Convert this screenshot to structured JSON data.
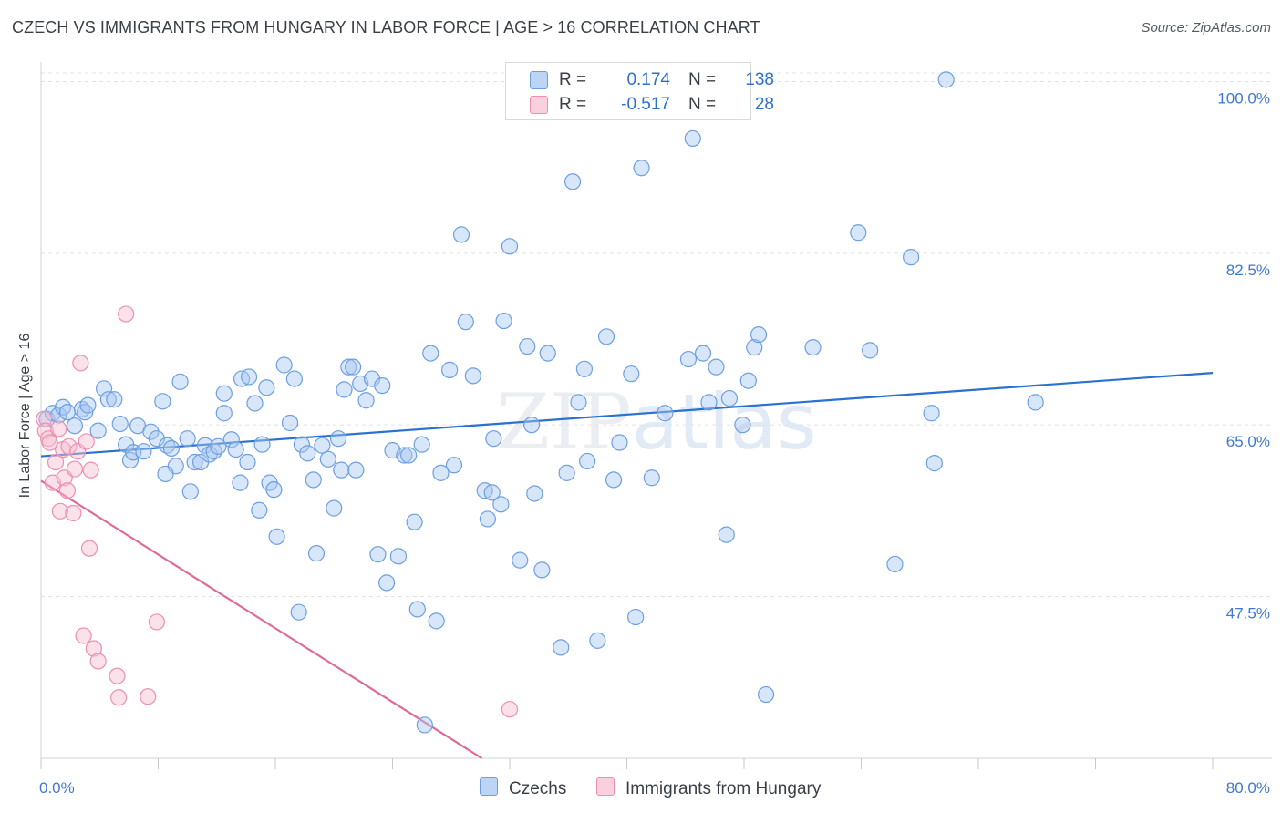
{
  "title": "CZECH VS IMMIGRANTS FROM HUNGARY IN LABOR FORCE | AGE > 16 CORRELATION CHART",
  "source": "Source: ZipAtlas.com",
  "watermark": "ZIPatlas",
  "legend": {
    "rows": [
      {
        "r_label": "R =",
        "r_value": "0.174",
        "n_label": "N =",
        "n_value": "138"
      },
      {
        "r_label": "R =",
        "r_value": "-0.517",
        "n_label": "N =",
        "n_value": "28"
      }
    ],
    "bottom": [
      "Czechs",
      "Immigrants from Hungary"
    ]
  },
  "colors": {
    "czechs_fill": "#a9c8f2",
    "czechs_stroke": "#6d9fe0",
    "czechs_line": "#2a72d0",
    "hungary_fill": "#f7bcd0",
    "hungary_stroke": "#ec8fb0",
    "hungary_line": "#e0689a",
    "tick_label": "#3f78d0",
    "grid": "#dfe3e8"
  },
  "chart_data": {
    "type": "scatter",
    "title": "CZECH VS IMMIGRANTS FROM HUNGARY IN LABOR FORCE | AGE > 16 CORRELATION CHART",
    "xlabel": "",
    "ylabel": "In Labor Force | Age > 16",
    "xlim": [
      0,
      80
    ],
    "ylim": [
      31,
      102
    ],
    "x_tick_labels": [
      "0.0%",
      "80.0%"
    ],
    "y_ticks": [
      47.5,
      65.0,
      82.5,
      100.0
    ],
    "y_tick_labels": [
      "47.5%",
      "65.0%",
      "82.5%",
      "100.0%"
    ],
    "grid": true,
    "series": [
      {
        "name": "Czechs",
        "points": [
          [
            0.4,
            65.6
          ],
          [
            0.8,
            66.2
          ],
          [
            1.2,
            66.0
          ],
          [
            1.5,
            66.8
          ],
          [
            1.8,
            66.3
          ],
          [
            2.3,
            64.9
          ],
          [
            2.8,
            66.6
          ],
          [
            3.0,
            66.3
          ],
          [
            3.2,
            67.0
          ],
          [
            3.9,
            64.4
          ],
          [
            4.3,
            68.7
          ],
          [
            4.6,
            67.6
          ],
          [
            5.0,
            67.6
          ],
          [
            5.4,
            65.1
          ],
          [
            5.8,
            63.0
          ],
          [
            6.1,
            61.4
          ],
          [
            6.3,
            62.2
          ],
          [
            6.6,
            64.9
          ],
          [
            7.0,
            62.3
          ],
          [
            7.5,
            64.3
          ],
          [
            7.9,
            63.6
          ],
          [
            8.3,
            67.4
          ],
          [
            8.6,
            62.9
          ],
          [
            8.9,
            62.6
          ],
          [
            9.2,
            60.8
          ],
          [
            9.5,
            69.4
          ],
          [
            10.0,
            63.6
          ],
          [
            10.2,
            58.2
          ],
          [
            10.5,
            61.2
          ],
          [
            10.9,
            61.2
          ],
          [
            11.2,
            62.9
          ],
          [
            11.5,
            62.0
          ],
          [
            11.8,
            62.3
          ],
          [
            12.1,
            62.8
          ],
          [
            12.5,
            66.2
          ],
          [
            12.5,
            68.2
          ],
          [
            13.0,
            63.5
          ],
          [
            13.3,
            62.5
          ],
          [
            13.7,
            69.7
          ],
          [
            14.1,
            61.2
          ],
          [
            14.2,
            69.9
          ],
          [
            14.6,
            67.2
          ],
          [
            14.9,
            56.3
          ],
          [
            15.1,
            63.0
          ],
          [
            15.4,
            68.8
          ],
          [
            15.6,
            59.1
          ],
          [
            15.9,
            58.4
          ],
          [
            16.1,
            53.6
          ],
          [
            16.6,
            71.1
          ],
          [
            17.0,
            65.2
          ],
          [
            17.3,
            69.7
          ],
          [
            17.6,
            45.9
          ],
          [
            17.8,
            63.0
          ],
          [
            18.2,
            62.1
          ],
          [
            18.6,
            59.4
          ],
          [
            18.8,
            51.9
          ],
          [
            19.2,
            62.9
          ],
          [
            19.6,
            61.5
          ],
          [
            20.0,
            56.5
          ],
          [
            20.3,
            63.6
          ],
          [
            20.5,
            60.4
          ],
          [
            20.7,
            68.6
          ],
          [
            21.0,
            70.9
          ],
          [
            21.3,
            70.9
          ],
          [
            21.8,
            69.2
          ],
          [
            22.2,
            67.5
          ],
          [
            22.6,
            69.7
          ],
          [
            23.0,
            51.8
          ],
          [
            23.3,
            69.0
          ],
          [
            23.6,
            48.9
          ],
          [
            24.0,
            62.4
          ],
          [
            24.4,
            51.6
          ],
          [
            24.8,
            61.9
          ],
          [
            25.1,
            61.9
          ],
          [
            25.5,
            55.1
          ],
          [
            25.7,
            46.2
          ],
          [
            26.0,
            63.0
          ],
          [
            26.6,
            72.3
          ],
          [
            27.0,
            45.0
          ],
          [
            27.3,
            60.1
          ],
          [
            27.9,
            70.6
          ],
          [
            28.2,
            60.9
          ],
          [
            28.7,
            84.4
          ],
          [
            29.0,
            75.5
          ],
          [
            29.5,
            70.0
          ],
          [
            30.3,
            58.3
          ],
          [
            30.5,
            55.4
          ],
          [
            30.9,
            63.6
          ],
          [
            31.4,
            56.9
          ],
          [
            31.6,
            75.6
          ],
          [
            32.0,
            83.2
          ],
          [
            32.7,
            51.2
          ],
          [
            33.2,
            73.0
          ],
          [
            33.5,
            65.0
          ],
          [
            33.7,
            58.0
          ],
          [
            34.2,
            50.2
          ],
          [
            34.6,
            72.3
          ],
          [
            35.5,
            42.3
          ],
          [
            35.9,
            60.1
          ],
          [
            36.3,
            89.8
          ],
          [
            36.7,
            67.3
          ],
          [
            37.1,
            70.7
          ],
          [
            38.0,
            43.0
          ],
          [
            38.6,
            74.0
          ],
          [
            39.1,
            59.4
          ],
          [
            39.5,
            63.2
          ],
          [
            40.3,
            70.2
          ],
          [
            40.6,
            45.4
          ],
          [
            41.0,
            91.2
          ],
          [
            41.7,
            59.6
          ],
          [
            42.6,
            66.2
          ],
          [
            44.2,
            71.7
          ],
          [
            44.5,
            94.2
          ],
          [
            45.2,
            72.3
          ],
          [
            45.6,
            67.3
          ],
          [
            46.1,
            70.9
          ],
          [
            46.8,
            53.8
          ],
          [
            47.0,
            67.7
          ],
          [
            47.9,
            65.0
          ],
          [
            48.3,
            69.5
          ],
          [
            48.7,
            72.9
          ],
          [
            49.0,
            74.2
          ],
          [
            49.5,
            37.5
          ],
          [
            52.7,
            72.9
          ],
          [
            55.8,
            84.6
          ],
          [
            56.6,
            72.6
          ],
          [
            58.3,
            50.8
          ],
          [
            59.4,
            82.1
          ],
          [
            60.8,
            66.2
          ],
          [
            61.0,
            61.1
          ],
          [
            61.8,
            100.2
          ],
          [
            67.9,
            67.3
          ],
          [
            26.2,
            34.4
          ],
          [
            8.5,
            60.0
          ],
          [
            13.6,
            59.1
          ],
          [
            21.5,
            60.4
          ],
          [
            30.8,
            58.1
          ],
          [
            37.3,
            61.3
          ]
        ]
      },
      {
        "name": "Immigrants from Hungary",
        "points": [
          [
            0.2,
            65.6
          ],
          [
            0.3,
            64.4
          ],
          [
            0.5,
            63.6
          ],
          [
            0.6,
            63.2
          ],
          [
            0.8,
            59.1
          ],
          [
            1.0,
            61.2
          ],
          [
            1.2,
            64.6
          ],
          [
            1.3,
            56.2
          ],
          [
            1.5,
            62.5
          ],
          [
            1.6,
            59.6
          ],
          [
            1.8,
            58.3
          ],
          [
            1.9,
            62.8
          ],
          [
            2.2,
            56.0
          ],
          [
            2.3,
            60.5
          ],
          [
            2.5,
            62.3
          ],
          [
            2.7,
            71.3
          ],
          [
            3.1,
            63.3
          ],
          [
            3.3,
            52.4
          ],
          [
            3.4,
            60.4
          ],
          [
            2.9,
            43.5
          ],
          [
            3.6,
            42.2
          ],
          [
            3.9,
            40.9
          ],
          [
            5.2,
            39.4
          ],
          [
            5.3,
            37.2
          ],
          [
            5.8,
            76.3
          ],
          [
            7.3,
            37.3
          ],
          [
            7.9,
            44.9
          ],
          [
            32.0,
            36.0
          ]
        ]
      }
    ],
    "trend_lines": [
      {
        "series": "Czechs",
        "x": [
          0,
          80
        ],
        "y": [
          61.8,
          70.3
        ]
      },
      {
        "series": "Immigrants from Hungary",
        "x": [
          0,
          30.1
        ],
        "y": [
          59.3,
          31.0
        ]
      }
    ]
  }
}
